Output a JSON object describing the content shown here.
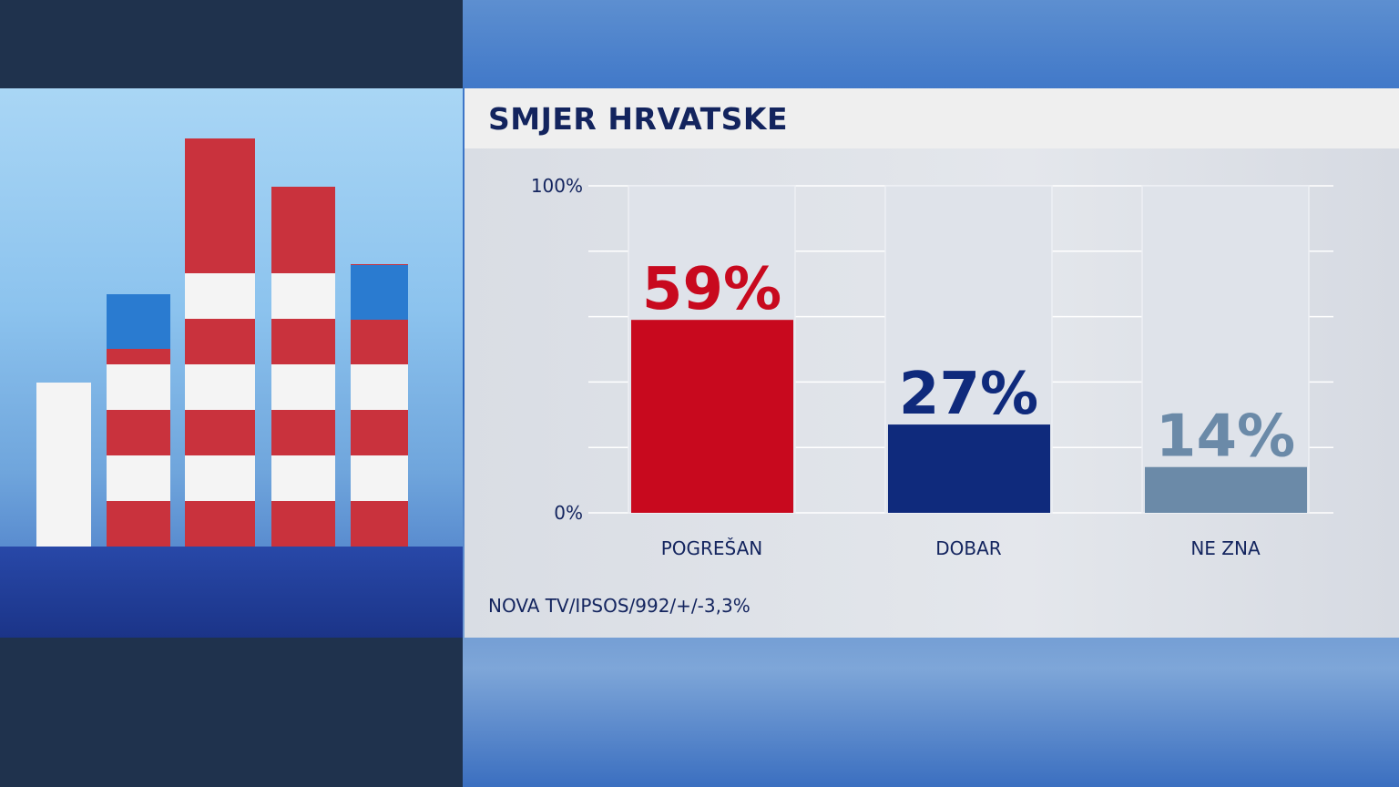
{
  "chart_data": {
    "type": "bar",
    "title": "SMJER HRVATSKE",
    "categories": [
      "POGREŠAN",
      "DOBAR",
      "NE ZNA"
    ],
    "values": [
      59,
      27,
      14
    ],
    "value_labels": [
      "59%",
      "27%",
      "14%"
    ],
    "colors": [
      "#c8091e",
      "#0f2a7c",
      "#6b8aa8"
    ],
    "label_colors": [
      "#c8091e",
      "#0f2a7c",
      "#6b8aa8"
    ],
    "ylim": [
      0,
      100
    ],
    "y_ticks_labeled": [
      "0%",
      "100%"
    ],
    "gridlines": [
      0,
      20,
      40,
      60,
      80,
      100
    ],
    "grid": true,
    "xlabel": "",
    "ylabel": ""
  },
  "source": "NOVA TV/IPSOS/992/+/-3,3%"
}
